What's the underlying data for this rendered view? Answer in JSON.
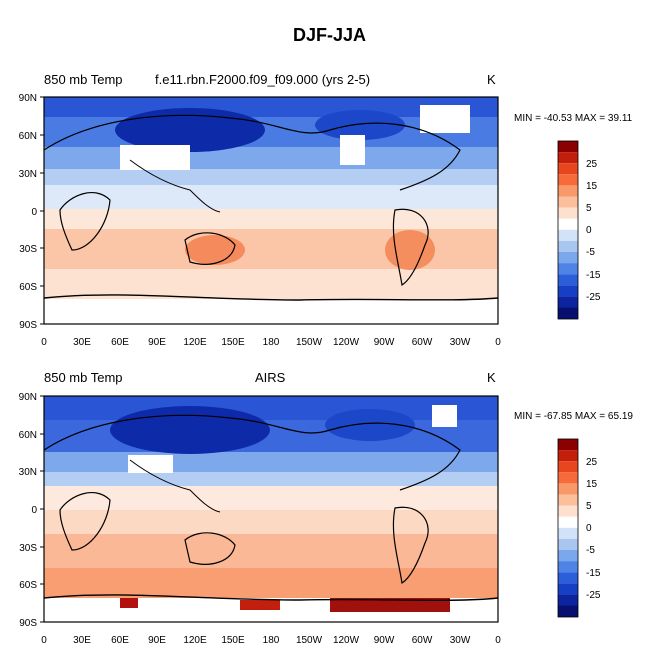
{
  "title": "DJF-JJA",
  "panels": [
    {
      "left_label": "850 mb Temp",
      "center_label": "f.e11.rbn.F2000.f09_f09.000 (yrs 2-5)",
      "right_label": "K",
      "minmax": "MIN = -40.53 MAX =  39.11"
    },
    {
      "left_label": "850 mb Temp",
      "center_label": "AIRS",
      "right_label": "K",
      "minmax": "MIN = -67.85 MAX =  65.19"
    }
  ],
  "lat_labels": [
    "90N",
    "60N",
    "30N",
    "0",
    "30S",
    "60S",
    "90S"
  ],
  "lon_labels": [
    "0",
    "30E",
    "60E",
    "90E",
    "120E",
    "150E",
    "180",
    "150W",
    "120W",
    "90W",
    "60W",
    "30W",
    "0"
  ],
  "colorbar_labels": [
    "25",
    "15",
    "5",
    "0",
    "-5",
    "-15",
    "-25"
  ],
  "colorbar_colors": [
    "#8b0000",
    "#c2200d",
    "#e7461e",
    "#f76a3a",
    "#f99868",
    "#fbbf9c",
    "#fde0cd",
    "#ffffff",
    "#d2e3f7",
    "#a8c6f0",
    "#7ba7ec",
    "#4f84e6",
    "#2b5fda",
    "#173fc5",
    "#0d24a0",
    "#07106f"
  ]
}
